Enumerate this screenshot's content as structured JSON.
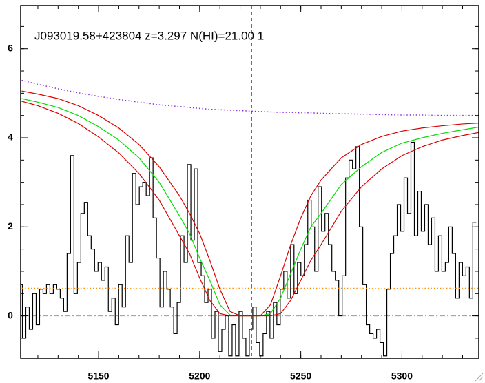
{
  "chart_data": {
    "type": "line",
    "title": "J093019.58+423804 z=3.297 N(HI)=21.00 1",
    "xlim": [
      5111.5,
      5338
    ],
    "ylim": [
      -0.95,
      6.97
    ],
    "xticks": [
      5150,
      5200,
      5250,
      5300
    ],
    "yticks": [
      0,
      2,
      4,
      6
    ],
    "minor_ticks": {
      "x": 5,
      "y": 4
    },
    "vline": {
      "x": 5225.7,
      "color": "#3a3acc",
      "dash": "dashed"
    },
    "hline": {
      "y": 0,
      "color": "#999999",
      "dash": "dashdot"
    },
    "spectrum": {
      "color": "#000000",
      "x": [
        5111.5,
        5113.2,
        5114.9,
        5116.6,
        5118.3,
        5120.0,
        5121.7,
        5123.4,
        5125.1,
        5126.8,
        5128.5,
        5130.2,
        5131.9,
        5133.6,
        5135.3,
        5137.0,
        5138.7,
        5140.4,
        5142.1,
        5143.8,
        5145.5,
        5147.2,
        5148.9,
        5150.6,
        5152.3,
        5154.0,
        5155.7,
        5157.4,
        5159.1,
        5160.8,
        5162.5,
        5164.2,
        5165.9,
        5167.6,
        5169.3,
        5171.0,
        5172.7,
        5174.4,
        5176.1,
        5177.8,
        5179.5,
        5181.2,
        5182.9,
        5184.6,
        5186.3,
        5188.0,
        5189.7,
        5191.4,
        5193.1,
        5194.8,
        5196.5,
        5198.2,
        5199.9,
        5201.6,
        5203.3,
        5205.0,
        5206.7,
        5208.4,
        5210.1,
        5211.8,
        5213.5,
        5215.2,
        5216.9,
        5218.6,
        5220.3,
        5222.0,
        5223.7,
        5225.4,
        5227.1,
        5228.8,
        5230.5,
        5232.2,
        5233.9,
        5235.6,
        5237.3,
        5239.0,
        5240.7,
        5242.4,
        5244.1,
        5245.8,
        5247.5,
        5249.2,
        5250.9,
        5252.6,
        5254.3,
        5256.0,
        5257.7,
        5259.4,
        5261.1,
        5262.8,
        5264.5,
        5266.2,
        5267.9,
        5269.6,
        5271.3,
        5273.0,
        5274.7,
        5276.4,
        5278.1,
        5279.8,
        5281.5,
        5283.2,
        5284.9,
        5286.6,
        5288.3,
        5290.0,
        5291.7,
        5293.4,
        5295.1,
        5296.8,
        5298.5,
        5300.2,
        5301.9,
        5303.6,
        5305.3,
        5307.0,
        5308.7,
        5310.4,
        5312.1,
        5313.8,
        5315.5,
        5317.2,
        5318.9,
        5320.6,
        5322.3,
        5324.0,
        5325.7,
        5327.4,
        5329.1,
        5330.8,
        5332.5,
        5334.2,
        5335.9
      ],
      "values": [
        0.7,
        -0.5,
        0.2,
        -0.3,
        0.5,
        -0.2,
        0.6,
        0.5,
        0.7,
        0.5,
        0.7,
        0.6,
        0.4,
        0.1,
        1.4,
        3.6,
        0.5,
        1.2,
        2.3,
        2.55,
        1.8,
        1.5,
        1.0,
        1.2,
        0.8,
        1.1,
        0.1,
        0.4,
        -0.2,
        0.7,
        0.2,
        1.8,
        1.2,
        3.2,
        2.5,
        2.9,
        3.0,
        2.7,
        3.55,
        2.2,
        1.3,
        0.2,
        1.0,
        0.6,
        0.2,
        -0.4,
        0.3,
        1.8,
        1.2,
        3.4,
        1.7,
        3.3,
        1.2,
        0.9,
        0.3,
        0.6,
        -0.5,
        0.1,
        -0.8,
        -0.3,
        0.0,
        -0.9,
        -0.2,
        -0.9,
        0.1,
        -0.5,
        -0.9,
        -0.3,
        0.2,
        -0.6,
        -0.9,
        -0.4,
        0.1,
        -0.5,
        0.3,
        -0.2,
        0.6,
        1.0,
        0.4,
        1.6,
        0.5,
        1.2,
        0.9,
        1.6,
        2.6,
        2.0,
        1.0,
        2.9,
        1.9,
        2.3,
        1.6,
        1.0,
        0.8,
        0.0,
        0.9,
        3.1,
        3.5,
        3.3,
        3.8,
        2.0,
        0.7,
        -0.2,
        -0.4,
        -0.5,
        -0.3,
        -0.6,
        -0.9,
        0.6,
        1.4,
        1.8,
        2.5,
        1.9,
        3.1,
        2.3,
        3.9,
        1.8,
        2.8,
        1.9,
        2.5,
        1.6,
        2.2,
        1.0,
        1.8,
        1.0,
        1.2,
        2.0,
        1.4,
        0.4,
        1.2,
        0.9,
        1.1,
        0.4,
        2.1
      ]
    },
    "x": [
      5112,
      5120,
      5130,
      5140,
      5150,
      5160,
      5170,
      5180,
      5190,
      5195,
      5200,
      5205,
      5210,
      5215,
      5220,
      5225,
      5230,
      5235,
      5240,
      5245,
      5250,
      5255,
      5260,
      5270,
      5280,
      5290,
      5300,
      5310,
      5320,
      5330,
      5338
    ],
    "series": [
      {
        "color": "#8a2be2",
        "dash": "dotted",
        "values": [
          5.29,
          5.2,
          5.1,
          5.01,
          4.93,
          4.86,
          4.8,
          4.74,
          4.7,
          4.68,
          4.66,
          4.64,
          4.63,
          4.62,
          4.61,
          4.6,
          4.59,
          4.58,
          4.57,
          4.57,
          4.56,
          4.56,
          4.55,
          4.54,
          4.53,
          4.52,
          4.51,
          4.51,
          4.5,
          4.5,
          4.5
        ]
      },
      {
        "color": "#ff8c00",
        "dash": "dotted",
        "values": [
          0.62,
          0.62,
          0.61,
          0.62,
          0.62,
          0.62,
          0.61,
          0.62,
          0.62,
          0.62,
          0.61,
          0.62,
          0.62,
          0.62,
          0.62,
          0.62,
          0.62,
          0.62,
          0.62,
          0.61,
          0.62,
          0.62,
          0.62,
          0.62,
          0.62,
          0.61,
          0.62,
          0.62,
          0.62,
          0.62,
          0.62
        ]
      },
      {
        "color": "#00dd00",
        "dash": "solid",
        "values": [
          4.88,
          4.8,
          4.68,
          4.5,
          4.25,
          3.95,
          3.55,
          3.0,
          2.25,
          1.85,
          1.3,
          0.8,
          0.25,
          0.02,
          0,
          0,
          0,
          0.05,
          0.4,
          0.95,
          1.5,
          2.0,
          2.3,
          2.95,
          3.35,
          3.67,
          3.88,
          4.0,
          4.1,
          4.18,
          4.24
        ]
      },
      {
        "color": "#dd0000",
        "dash": "solid",
        "values": [
          5.05,
          4.98,
          4.88,
          4.72,
          4.5,
          4.22,
          3.85,
          3.35,
          2.7,
          2.3,
          1.85,
          1.25,
          0.6,
          0.1,
          0,
          0,
          0,
          0.25,
          0.9,
          1.6,
          2.2,
          2.7,
          3.05,
          3.55,
          3.85,
          4.03,
          4.15,
          4.22,
          4.27,
          4.31,
          4.33
        ]
      },
      {
        "color": "#dd0000",
        "dash": "solid",
        "values": [
          4.82,
          4.72,
          4.55,
          4.32,
          4.02,
          3.66,
          3.2,
          2.6,
          1.8,
          1.4,
          0.85,
          0.35,
          0.05,
          0,
          0,
          0,
          0,
          0,
          0.05,
          0.35,
          0.8,
          1.25,
          1.6,
          2.35,
          2.9,
          3.3,
          3.6,
          3.8,
          3.95,
          4.05,
          4.12
        ]
      }
    ]
  }
}
